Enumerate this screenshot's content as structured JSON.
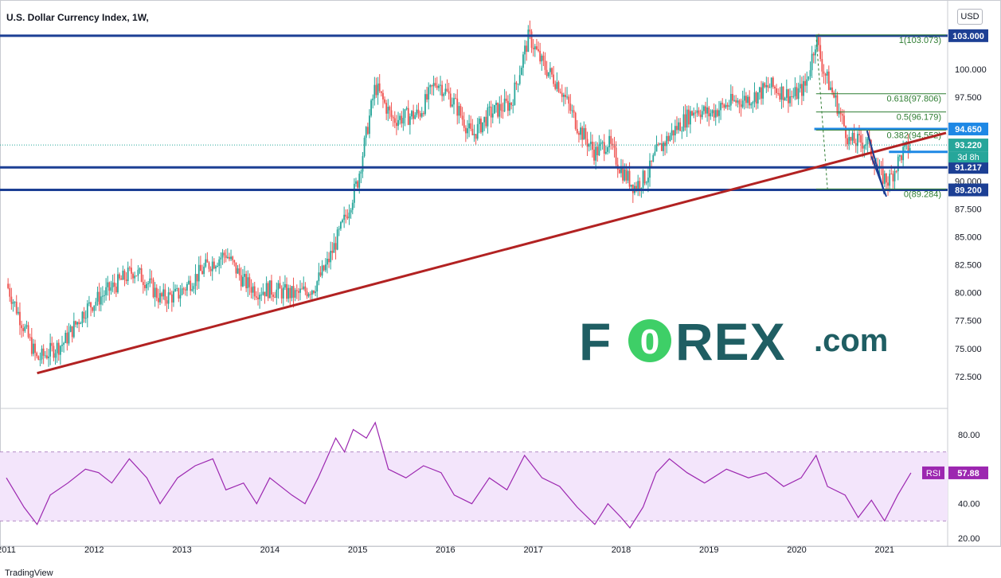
{
  "title": "U.S. Dollar Currency Index, 1W,",
  "currency_button": "USD",
  "branding": "TradingView",
  "watermark": {
    "main": "F0REX",
    "suffix": ".com"
  },
  "colors": {
    "level": "#1c3f94",
    "trend": "#b22222",
    "fib": "#2e7d32",
    "rsi": "#9c27b0",
    "up": "#26a69a",
    "down": "#ef5350",
    "rsi_band": "#f3e5fb",
    "wm_teal": "#1f5e63",
    "wm_green": "#3ecf67"
  },
  "chart_data": [
    {
      "type": "candlestick",
      "title": "U.S. Dollar Currency Index, 1W,",
      "x_ticks": [
        "2011",
        "2012",
        "2013",
        "2014",
        "2015",
        "2016",
        "2017",
        "2018",
        "2019",
        "2020",
        "2021"
      ],
      "xlim": [
        2011.0,
        2021.7
      ],
      "y_ticks": [
        "72.500",
        "75.000",
        "77.500",
        "80.000",
        "82.500",
        "85.000",
        "87.500",
        "90.000",
        "97.500",
        "100.000"
      ],
      "ylim": [
        70.0,
        104.2
      ],
      "close_path": [
        [
          2011.0,
          80.8
        ],
        [
          2011.35,
          74.0
        ],
        [
          2011.65,
          75.5
        ],
        [
          2011.9,
          78.5
        ],
        [
          2012.05,
          79.5
        ],
        [
          2012.45,
          82.0
        ],
        [
          2012.6,
          81.0
        ],
        [
          2012.75,
          79.5
        ],
        [
          2012.95,
          79.8
        ],
        [
          2013.1,
          81.0
        ],
        [
          2013.3,
          82.5
        ],
        [
          2013.5,
          83.5
        ],
        [
          2013.7,
          81.0
        ],
        [
          2013.85,
          80.2
        ],
        [
          2014.0,
          80.3
        ],
        [
          2014.3,
          79.8
        ],
        [
          2014.5,
          80.5
        ],
        [
          2014.65,
          82.5
        ],
        [
          2014.85,
          86.5
        ],
        [
          2015.0,
          90.0
        ],
        [
          2015.2,
          98.5
        ],
        [
          2015.4,
          95.5
        ],
        [
          2015.7,
          96.0
        ],
        [
          2015.9,
          99.0
        ],
        [
          2016.1,
          97.0
        ],
        [
          2016.3,
          94.0
        ],
        [
          2016.5,
          96.0
        ],
        [
          2016.75,
          97.0
        ],
        [
          2016.95,
          103.0
        ],
        [
          2017.1,
          100.5
        ],
        [
          2017.3,
          98.5
        ],
        [
          2017.5,
          95.0
        ],
        [
          2017.7,
          92.5
        ],
        [
          2017.85,
          93.5
        ],
        [
          2018.0,
          91.0
        ],
        [
          2018.15,
          89.5
        ],
        [
          2018.3,
          90.5
        ],
        [
          2018.4,
          92.5
        ],
        [
          2018.6,
          94.5
        ],
        [
          2018.85,
          96.5
        ],
        [
          2019.0,
          96.0
        ],
        [
          2019.25,
          97.0
        ],
        [
          2019.5,
          97.5
        ],
        [
          2019.7,
          98.5
        ],
        [
          2019.95,
          97.5
        ],
        [
          2020.1,
          98.5
        ],
        [
          2020.22,
          102.8
        ],
        [
          2020.3,
          100.0
        ],
        [
          2020.45,
          97.0
        ],
        [
          2020.6,
          93.5
        ],
        [
          2020.8,
          93.5
        ],
        [
          2020.95,
          90.5
        ],
        [
          2021.05,
          90.0
        ],
        [
          2021.2,
          92.5
        ],
        [
          2021.3,
          93.2
        ]
      ],
      "horizontal_levels": [
        103.0,
        94.65,
        93.22,
        91.217,
        89.2
      ],
      "level_labels": [
        "103.000",
        "94.650",
        "93.220",
        "91.217",
        "89.200"
      ],
      "countdown_label": "3d 8h",
      "trendline": {
        "from": [
          2011.35,
          72.8
        ],
        "to": [
          2021.7,
          94.3
        ]
      },
      "fibonacci": [
        {
          "label": "1(103.073)",
          "value": 103.073
        },
        {
          "label": "0.618(97.806)",
          "value": 97.806
        },
        {
          "label": "0.5(96.179)",
          "value": 96.179
        },
        {
          "label": "0.382(94.552)",
          "value": 94.552
        },
        {
          "label": "0(89.284)",
          "value": 89.284
        }
      ]
    },
    {
      "type": "line",
      "name": "RSI",
      "label": "RSI",
      "last_value_label": "57.88",
      "y_ticks": [
        "20.00",
        "40.00",
        "80.00"
      ],
      "ylim": [
        20,
        92
      ],
      "band": [
        30,
        70
      ],
      "path": [
        [
          2011.0,
          55
        ],
        [
          2011.2,
          38
        ],
        [
          2011.35,
          28
        ],
        [
          2011.5,
          45
        ],
        [
          2011.7,
          52
        ],
        [
          2011.9,
          60
        ],
        [
          2012.05,
          58
        ],
        [
          2012.2,
          52
        ],
        [
          2012.4,
          66
        ],
        [
          2012.6,
          55
        ],
        [
          2012.75,
          40
        ],
        [
          2012.95,
          55
        ],
        [
          2013.15,
          62
        ],
        [
          2013.35,
          66
        ],
        [
          2013.5,
          48
        ],
        [
          2013.7,
          52
        ],
        [
          2013.85,
          40
        ],
        [
          2014.0,
          55
        ],
        [
          2014.25,
          45
        ],
        [
          2014.4,
          40
        ],
        [
          2014.55,
          55
        ],
        [
          2014.75,
          78
        ],
        [
          2014.85,
          70
        ],
        [
          2014.95,
          83
        ],
        [
          2015.1,
          78
        ],
        [
          2015.2,
          87
        ],
        [
          2015.35,
          60
        ],
        [
          2015.55,
          55
        ],
        [
          2015.75,
          62
        ],
        [
          2015.95,
          58
        ],
        [
          2016.1,
          45
        ],
        [
          2016.3,
          40
        ],
        [
          2016.5,
          55
        ],
        [
          2016.7,
          48
        ],
        [
          2016.9,
          68
        ],
        [
          2017.1,
          55
        ],
        [
          2017.3,
          50
        ],
        [
          2017.5,
          38
        ],
        [
          2017.7,
          28
        ],
        [
          2017.85,
          40
        ],
        [
          2018.0,
          32
        ],
        [
          2018.1,
          26
        ],
        [
          2018.25,
          38
        ],
        [
          2018.4,
          58
        ],
        [
          2018.55,
          66
        ],
        [
          2018.75,
          58
        ],
        [
          2018.95,
          52
        ],
        [
          2019.2,
          60
        ],
        [
          2019.45,
          55
        ],
        [
          2019.65,
          58
        ],
        [
          2019.85,
          50
        ],
        [
          2020.05,
          55
        ],
        [
          2020.22,
          68
        ],
        [
          2020.35,
          50
        ],
        [
          2020.55,
          45
        ],
        [
          2020.7,
          32
        ],
        [
          2020.85,
          42
        ],
        [
          2021.0,
          30
        ],
        [
          2021.05,
          35
        ],
        [
          2021.15,
          45
        ],
        [
          2021.3,
          57.88
        ]
      ]
    }
  ]
}
